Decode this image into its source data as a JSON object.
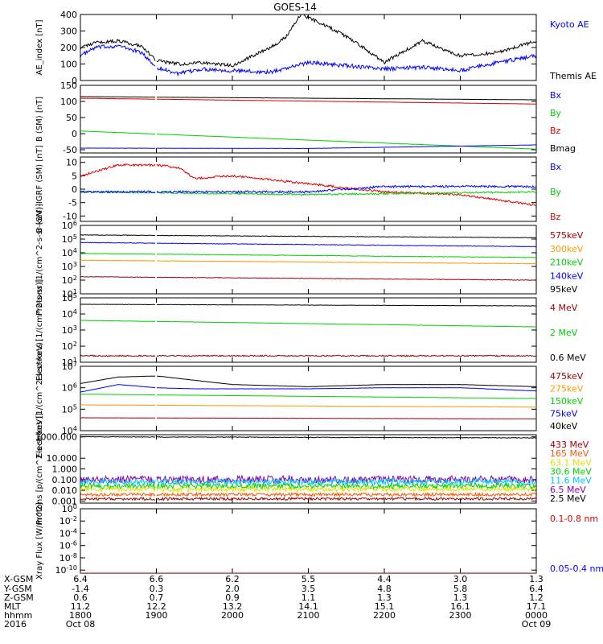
{
  "title": "GOES-14",
  "colors": {
    "blue": "#0000ff",
    "green": "#00d000",
    "red": "#dd0000",
    "orange": "#ff9900",
    "black": "#000000",
    "cyan": "#00c8ff",
    "yellow": "#e0e000",
    "purple": "#8800aa",
    "brown": "#8a3a1a",
    "darkred": "#990000",
    "orangered": "#ff5500"
  },
  "chart_data": [
    {
      "type": "line",
      "ylabel": "AE_index [nT]",
      "ylim": [
        0,
        400
      ],
      "yticks": [
        "0",
        "100",
        "200",
        "300",
        "400"
      ],
      "legend": [
        {
          "label": "Kyoto AE",
          "color": "blue"
        },
        {
          "label": "Themis AE",
          "color": "black"
        }
      ],
      "series": [
        {
          "name": "Kyoto AE",
          "color": "blue",
          "noise": 12,
          "x": [
            0,
            0.2,
            0.5,
            0.8,
            1.0,
            1.3,
            1.6,
            2.0,
            2.5,
            3.0,
            3.5,
            4.0,
            4.5,
            5.0,
            5.5,
            6.0
          ],
          "y": [
            150,
            200,
            210,
            170,
            80,
            40,
            70,
            60,
            50,
            110,
            90,
            70,
            80,
            60,
            110,
            150
          ]
        },
        {
          "name": "Themis AE",
          "color": "black",
          "noise": 10,
          "x": [
            0,
            0.2,
            0.5,
            0.8,
            1.0,
            1.3,
            1.6,
            2.0,
            2.5,
            2.7,
            2.9,
            3.2,
            3.6,
            4.0,
            4.5,
            5.0,
            5.5,
            6.0
          ],
          "y": [
            200,
            230,
            240,
            210,
            120,
            100,
            110,
            90,
            200,
            260,
            400,
            340,
            240,
            110,
            240,
            150,
            170,
            240
          ]
        }
      ]
    },
    {
      "type": "line",
      "ylabel": "B (SM) [nT]",
      "ylim": [
        -60,
        150
      ],
      "yticks": [
        "-50",
        "0",
        "50",
        "100",
        "150"
      ],
      "legend": [
        {
          "label": "Bx",
          "color": "blue"
        },
        {
          "label": "By",
          "color": "green"
        },
        {
          "label": "Bz",
          "color": "red"
        },
        {
          "label": "Bmag",
          "color": "black"
        }
      ],
      "series": [
        {
          "name": "Bmag",
          "color": "black",
          "noise": 0.3,
          "x": [
            0,
            6
          ],
          "y": [
            115,
            105
          ]
        },
        {
          "name": "Bz",
          "color": "red",
          "noise": 0.3,
          "x": [
            0,
            6
          ],
          "y": [
            110,
            92
          ]
        },
        {
          "name": "By",
          "color": "green",
          "noise": 0.3,
          "x": [
            0,
            6
          ],
          "y": [
            8,
            -48
          ]
        },
        {
          "name": "Bx",
          "color": "blue",
          "noise": 0.3,
          "x": [
            0,
            3,
            6
          ],
          "y": [
            -45,
            -46,
            -35
          ]
        }
      ]
    },
    {
      "type": "line",
      "ylabel": "B (SM)-IGRF (SM) [nT]",
      "ylim": [
        -12,
        12
      ],
      "yticks": [
        "-10",
        "-5",
        "0",
        "5",
        "10"
      ],
      "legend": [
        {
          "label": "Bx",
          "color": "blue"
        },
        {
          "label": "By",
          "color": "green"
        },
        {
          "label": "Bz",
          "color": "red"
        }
      ],
      "series": [
        {
          "name": "Bz",
          "color": "red",
          "noise": 0.4,
          "x": [
            0,
            0.5,
            1.0,
            1.3,
            1.5,
            2.0,
            3.0,
            4.0,
            5.0,
            6.0
          ],
          "y": [
            5,
            9,
            9,
            8,
            4,
            5,
            2,
            -1,
            -2,
            -6
          ]
        },
        {
          "name": "By",
          "color": "green",
          "noise": 0.3,
          "x": [
            0,
            3,
            6
          ],
          "y": [
            -1,
            -2,
            -1
          ]
        },
        {
          "name": "Bx",
          "color": "blue",
          "noise": 0.4,
          "x": [
            0,
            3,
            4,
            6
          ],
          "y": [
            -1,
            -1,
            1,
            1
          ]
        }
      ]
    },
    {
      "type": "line",
      "scale": "log",
      "ylabel": "Protons [1/(cm^2-s-sr-keV)]",
      "ylim": [
        1,
        6
      ],
      "yticks": [
        "10^1",
        "10^2",
        "10^3",
        "10^4",
        "10^5",
        "10^6"
      ],
      "legend": [
        {
          "label": "575keV",
          "color": "darkred"
        },
        {
          "label": "300keV",
          "color": "orange"
        },
        {
          "label": "210keV",
          "color": "green"
        },
        {
          "label": "140keV",
          "color": "blue"
        },
        {
          "label": "95keV",
          "color": "black"
        }
      ],
      "series": [
        {
          "name": "95keV",
          "color": "black",
          "noise": 0.02,
          "x": [
            0,
            6
          ],
          "y": [
            5.3,
            5.1
          ]
        },
        {
          "name": "140keV",
          "color": "blue",
          "noise": 0.02,
          "x": [
            0,
            6
          ],
          "y": [
            4.75,
            4.45
          ]
        },
        {
          "name": "210keV",
          "color": "green",
          "noise": 0.02,
          "x": [
            0,
            6
          ],
          "y": [
            3.95,
            3.65
          ]
        },
        {
          "name": "300keV",
          "color": "orange",
          "noise": 0.02,
          "x": [
            0,
            6
          ],
          "y": [
            3.45,
            3.2
          ]
        },
        {
          "name": "575keV",
          "color": "darkred",
          "noise": 0.02,
          "x": [
            0,
            6
          ],
          "y": [
            2.25,
            2.0
          ]
        }
      ]
    },
    {
      "type": "line",
      "scale": "log",
      "ylabel": "Electrons [1/(cm^2-s-sr)]",
      "ylim": [
        1,
        5
      ],
      "yticks": [
        "10^1",
        "10^2",
        "10^3",
        "10^4",
        "10^5"
      ],
      "legend": [
        {
          "label": "4 MeV",
          "color": "darkred"
        },
        {
          "label": "2 MeV",
          "color": "green"
        },
        {
          "label": "0.6 MeV",
          "color": "black"
        }
      ],
      "series": [
        {
          "name": "0.6 MeV",
          "color": "black",
          "noise": 0.01,
          "x": [
            0,
            6
          ],
          "y": [
            4.6,
            4.5
          ]
        },
        {
          "name": "2 MeV",
          "color": "green",
          "noise": 0.01,
          "x": [
            0,
            6
          ],
          "y": [
            3.6,
            3.2
          ]
        },
        {
          "name": "4 MeV",
          "color": "darkred",
          "noise": 0.04,
          "x": [
            0,
            6
          ],
          "y": [
            1.4,
            1.4
          ]
        }
      ]
    },
    {
      "type": "line",
      "scale": "log",
      "ylabel": "Electrons [1/(cm^2-s-sr-keV)]",
      "ylim": [
        4,
        7
      ],
      "yticks": [
        "10^4",
        "10^5",
        "10^6",
        "10^7"
      ],
      "legend": [
        {
          "label": "475keV",
          "color": "darkred"
        },
        {
          "label": "275keV",
          "color": "orange"
        },
        {
          "label": "150keV",
          "color": "green"
        },
        {
          "label": "75keV",
          "color": "blue"
        },
        {
          "label": "40keV",
          "color": "black"
        }
      ],
      "series": [
        {
          "name": "40keV",
          "color": "black",
          "noise": 0.005,
          "x": [
            0,
            0.5,
            1.0,
            1.5,
            2.0,
            3.0,
            4.0,
            5.0,
            6.0
          ],
          "y": [
            6.2,
            6.5,
            6.55,
            6.35,
            6.15,
            6.05,
            6.15,
            6.15,
            6.05
          ]
        },
        {
          "name": "75keV",
          "color": "blue",
          "noise": 0.005,
          "x": [
            0,
            0.5,
            1.0,
            1.5,
            2.0,
            3.0,
            4.0,
            5.0,
            6.0
          ],
          "y": [
            5.8,
            6.15,
            6.0,
            5.95,
            5.95,
            5.95,
            6.0,
            6.0,
            5.85
          ]
        },
        {
          "name": "150keV",
          "color": "green",
          "noise": 0.005,
          "x": [
            0,
            6
          ],
          "y": [
            5.7,
            5.5
          ]
        },
        {
          "name": "275keV",
          "color": "orange",
          "noise": 0.005,
          "x": [
            0,
            6
          ],
          "y": [
            5.2,
            5.1
          ]
        },
        {
          "name": "475keV",
          "color": "darkred",
          "noise": 0.005,
          "x": [
            0,
            6
          ],
          "y": [
            4.6,
            4.55
          ]
        }
      ]
    },
    {
      "type": "line",
      "scale": "log",
      "ylabel": "Protons [p/(cm^2-s-sr-keV)]",
      "ylim": [
        -3.2,
        3.2
      ],
      "yticks": [
        "0.001",
        "0.010",
        "0.100",
        "1.000",
        "10.000",
        "1000.000"
      ],
      "ytickValues": [
        -3,
        -2,
        -1,
        0,
        1,
        3
      ],
      "legend": [
        {
          "label": "433 MeV",
          "color": "darkred"
        },
        {
          "label": "165 MeV",
          "color": "orangered"
        },
        {
          "label": "63.1 MeV",
          "color": "yellow"
        },
        {
          "label": "30.6 MeV",
          "color": "green"
        },
        {
          "label": "11.6 MeV",
          "color": "cyan"
        },
        {
          "label": "6.5 MeV",
          "color": "purple"
        },
        {
          "label": "2.5 MeV",
          "color": "black"
        }
      ],
      "series": [
        {
          "name": "2.5 MeV",
          "color": "black",
          "noise": 0.03,
          "x": [
            0,
            6
          ],
          "y": [
            3.0,
            2.9
          ]
        },
        {
          "name": "6.5 MeV",
          "color": "purple",
          "noise": 0.35,
          "x": [
            0,
            6
          ],
          "y": [
            -1.0,
            -1.0
          ]
        },
        {
          "name": "11.6 MeV",
          "color": "cyan",
          "noise": 0.3,
          "x": [
            0,
            6
          ],
          "y": [
            -1.2,
            -1.2
          ]
        },
        {
          "name": "30.6 MeV",
          "color": "green",
          "noise": 0.25,
          "x": [
            0,
            6
          ],
          "y": [
            -1.6,
            -1.6
          ]
        },
        {
          "name": "63.1 MeV",
          "color": "yellow",
          "noise": 0.2,
          "x": [
            0,
            6
          ],
          "y": [
            -1.9,
            -1.9
          ]
        },
        {
          "name": "165 MeV",
          "color": "orangered",
          "noise": 0.15,
          "x": [
            0,
            6
          ],
          "y": [
            -2.4,
            -2.4
          ]
        },
        {
          "name": "433 MeV",
          "color": "darkred",
          "noise": 0.12,
          "x": [
            0,
            6
          ],
          "y": [
            -2.8,
            -2.8
          ]
        }
      ]
    },
    {
      "type": "line",
      "scale": "log",
      "ylabel": "Xray Flux [W/m^2]",
      "ylim": [
        -10.5,
        0
      ],
      "yticks": [
        "10^-10",
        "10^-8",
        "10^-6",
        "10^-4",
        "10^-2",
        "10^0"
      ],
      "ytickValues": [
        -10,
        -8,
        -6,
        -4,
        -2,
        0
      ],
      "legend": [
        {
          "label": "0.1-0.8 nm",
          "color": "red"
        },
        {
          "label": "0.05-0.4 nm",
          "color": "blue"
        }
      ],
      "series": [
        {
          "name": "0.1-0.8 nm",
          "color": "red",
          "noise": 0,
          "x": [
            0,
            6
          ],
          "y": [
            -10.5,
            -10.5
          ]
        }
      ]
    }
  ],
  "xaxis": {
    "ticks": [
      {
        "x": 0,
        "vals": [
          "6.4",
          "-1.4",
          "0.6",
          "11.2",
          "1800",
          "Oct 08"
        ]
      },
      {
        "x": 1,
        "vals": [
          "6.6",
          "0.3",
          "0.7",
          "12.2",
          "1900",
          ""
        ]
      },
      {
        "x": 2,
        "vals": [
          "6.2",
          "2.0",
          "0.9",
          "13.2",
          "2000",
          ""
        ]
      },
      {
        "x": 3,
        "vals": [
          "5.5",
          "3.5",
          "1.1",
          "14.1",
          "2100",
          ""
        ]
      },
      {
        "x": 4,
        "vals": [
          "4.4",
          "4.8",
          "1.3",
          "15.1",
          "2200",
          ""
        ]
      },
      {
        "x": 5,
        "vals": [
          "3.0",
          "5.8",
          "1.3",
          "16.1",
          "2300",
          ""
        ]
      },
      {
        "x": 6,
        "vals": [
          "1.3",
          "6.4",
          "1.2",
          "17.1",
          "0000",
          "Oct 09"
        ]
      }
    ],
    "row_labels": [
      "X-GSM",
      "Y-GSM",
      "Z-GSM",
      "MLT",
      "hhmm",
      "2016"
    ],
    "gap": [
      0.985,
      1.005
    ]
  }
}
